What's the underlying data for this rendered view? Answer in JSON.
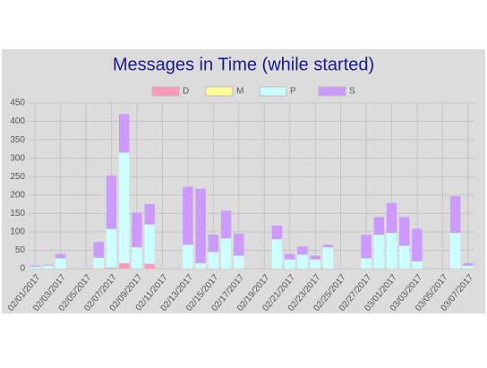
{
  "chart_data": {
    "type": "stacked-bar",
    "title": "Messages in Time (while started)",
    "categories": [
      "02/01/2017",
      null,
      "02/03/2017",
      null,
      "02/05/2017",
      null,
      "02/07/2017",
      null,
      "02/09/2017",
      null,
      "02/11/2017",
      null,
      "02/13/2017",
      null,
      "02/15/2017",
      null,
      "02/17/2017",
      null,
      "02/19/2017",
      null,
      "02/21/2017",
      null,
      "02/23/2017",
      null,
      "02/25/2017",
      null,
      "02/27/2017",
      null,
      "03/01/2017",
      null,
      "03/03/2017",
      null,
      "03/05/2017",
      null,
      "03/07/2017"
    ],
    "series": [
      {
        "name": "D",
        "color": "#ff99bb",
        "values": [
          0,
          0,
          0,
          0,
          0,
          0,
          3,
          15,
          0,
          13,
          0,
          0,
          0,
          0,
          0,
          0,
          0,
          0,
          0,
          0,
          0,
          0,
          0,
          0,
          0,
          0,
          0,
          0,
          0,
          0,
          0,
          0,
          0,
          0,
          0
        ]
      },
      {
        "name": "M",
        "color": "#ffff99",
        "values": [
          0,
          0,
          0,
          0,
          0,
          0,
          0,
          0,
          0,
          0,
          0,
          0,
          0,
          0,
          0,
          0,
          0,
          0,
          0,
          0,
          0,
          0,
          0,
          0,
          0,
          0,
          0,
          0,
          0,
          0,
          0,
          0,
          0,
          0,
          0
        ]
      },
      {
        "name": "P",
        "color": "#ccffff",
        "values": [
          5,
          8,
          28,
          0,
          0,
          30,
          105,
          300,
          58,
          107,
          0,
          0,
          65,
          15,
          45,
          82,
          35,
          0,
          0,
          80,
          25,
          38,
          25,
          58,
          0,
          0,
          28,
          92,
          97,
          62,
          20,
          0,
          0,
          97,
          8
        ]
      },
      {
        "name": "S",
        "color": "#cc99ff",
        "values": [
          3,
          2,
          12,
          0,
          0,
          42,
          145,
          105,
          94,
          55,
          0,
          0,
          157,
          202,
          47,
          75,
          60,
          0,
          0,
          37,
          15,
          22,
          10,
          7,
          0,
          0,
          64,
          48,
          81,
          78,
          88,
          0,
          0,
          100,
          7
        ]
      }
    ],
    "ylim": [
      0,
      450
    ],
    "yticks": [
      0,
      50,
      100,
      150,
      200,
      250,
      300,
      350,
      400,
      450
    ],
    "grid": true
  }
}
